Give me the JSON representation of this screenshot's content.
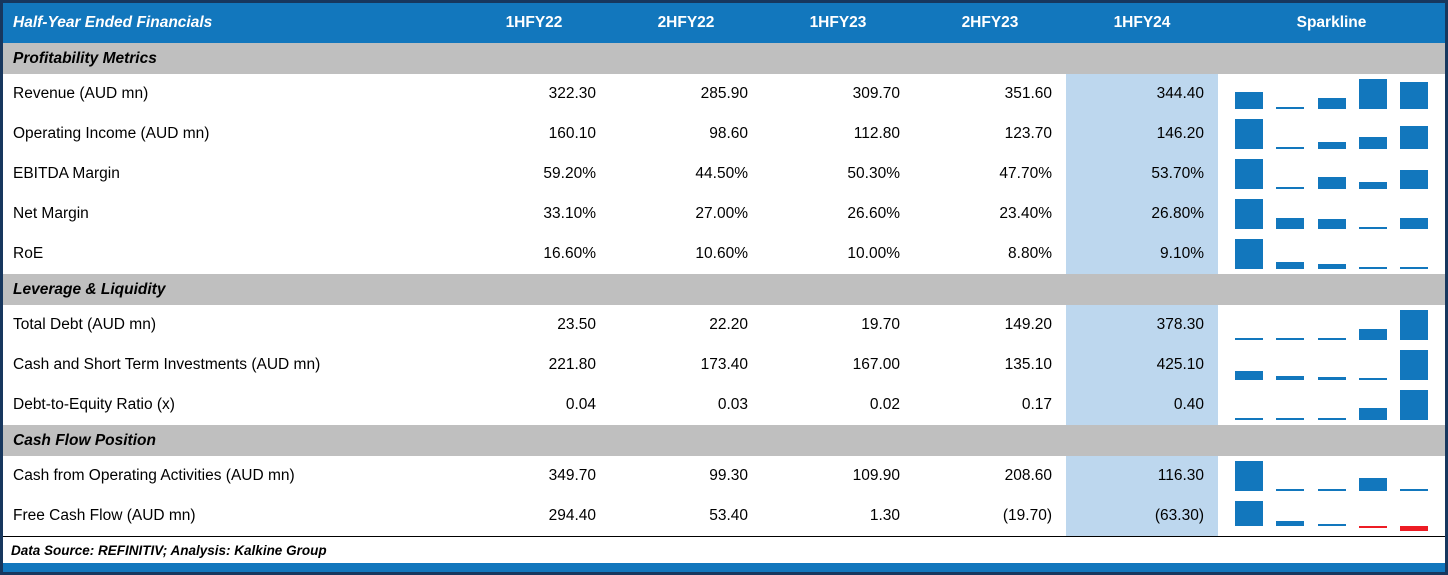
{
  "chart_data": {
    "type": "table",
    "title": "Half-Year Ended Financials",
    "columns": [
      "1HFY22",
      "2HFY22",
      "1HFY23",
      "2HFY23",
      "1HFY24"
    ],
    "highlighted_column": "1HFY24",
    "sparkline_header": "Sparkline",
    "sparkline_type": "bar",
    "sections": [
      {
        "label": "Profitability Metrics",
        "rows": [
          {
            "label": "Revenue (AUD mn)",
            "values": [
              "322.30",
              "285.90",
              "309.70",
              "351.60",
              "344.40"
            ]
          },
          {
            "label": "Operating Income (AUD mn)",
            "values": [
              "160.10",
              "98.60",
              "112.80",
              "123.70",
              "146.20"
            ]
          },
          {
            "label": "EBITDA Margin",
            "values": [
              "59.20%",
              "44.50%",
              "50.30%",
              "47.70%",
              "53.70%"
            ]
          },
          {
            "label": "Net Margin",
            "values": [
              "33.10%",
              "27.00%",
              "26.60%",
              "23.40%",
              "26.80%"
            ]
          },
          {
            "label": "RoE",
            "values": [
              "16.60%",
              "10.60%",
              "10.00%",
              "8.80%",
              "9.10%"
            ]
          }
        ]
      },
      {
        "label": "Leverage & Liquidity",
        "rows": [
          {
            "label": "Total Debt (AUD mn)",
            "values": [
              "23.50",
              "22.20",
              "19.70",
              "149.20",
              "378.30"
            ]
          },
          {
            "label": "Cash and Short Term Investments (AUD mn)",
            "values": [
              "221.80",
              "173.40",
              "167.00",
              "135.10",
              "425.10"
            ]
          },
          {
            "label": "Debt-to-Equity Ratio (x)",
            "values": [
              "0.04",
              "0.03",
              "0.02",
              "0.17",
              "0.40"
            ]
          }
        ]
      },
      {
        "label": "Cash Flow Position",
        "rows": [
          {
            "label": "Cash from Operating Activities (AUD mn)",
            "values": [
              "349.70",
              "99.30",
              "109.90",
              "208.60",
              "116.30"
            ]
          },
          {
            "label": "Free Cash Flow (AUD mn)",
            "values": [
              "294.40",
              "53.40",
              "1.30",
              "(19.70)",
              "(63.30)"
            ]
          }
        ]
      }
    ]
  },
  "footer": {
    "source_text": "Data Source: REFINITIV; Analysis: Kalkine Group"
  },
  "colors": {
    "header_blue": "#1277BD",
    "highlight_blue": "#BDD7EE",
    "section_gray": "#BFBFBF",
    "sparkline_blue": "#1277BD",
    "sparkline_negative": "#ED1C24",
    "outer_border": "#17375E"
  }
}
